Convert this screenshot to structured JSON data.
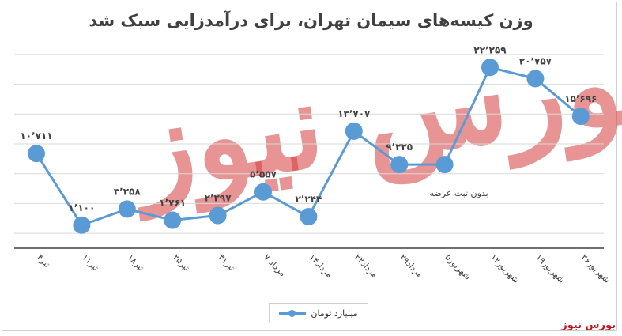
{
  "title": "وزن کیسه‌های سیمان تهران، برای درآمدزایی سبک شد",
  "source_label": "بورس نیوز",
  "watermark_text": "بورس نیوز",
  "colors": {
    "line": "#5b9bd5",
    "grid": "#d9d9d9",
    "axis": "#404040",
    "label": "#404040",
    "source": "#c0141c"
  },
  "chart_data": {
    "type": "line",
    "categories": [
      "۴تیر",
      "۱۱تیر",
      "۱۸تیر",
      "۲۵تیر",
      "۳۱تیر",
      "۷ مرداد",
      "۱۴مرداد",
      "۲۲مرداد",
      "۲۹مرداد",
      "۵شهریور",
      "۱۲شهریور",
      "۱۹شهریور",
      "۲۶شهریور"
    ],
    "series": [
      {
        "name": "میلیارد تومان",
        "values": [
          10711,
          1100,
          3258,
          1761,
          2397,
          5557,
          2244,
          13707,
          9225,
          9225,
          22259,
          20757,
          15696
        ],
        "labels": [
          "۱۰٬۷۱۱",
          "۱٬۱۰۰",
          "۳٬۲۵۸",
          "۱٬۷۶۱",
          "۲٬۳۹۷",
          "۵٬۵۵۷",
          "۲٬۲۴۴",
          "۱۳٬۷۰۷",
          "۹٬۲۲۵",
          "بدون ثبت عرضه",
          "۲۲٬۲۵۹",
          "۲۰٬۷۵۷",
          "۱۵٬۶۹۶"
        ]
      }
    ],
    "ylim": [
      -2000,
      26000
    ],
    "grid": true,
    "legend_position": "bottom"
  }
}
